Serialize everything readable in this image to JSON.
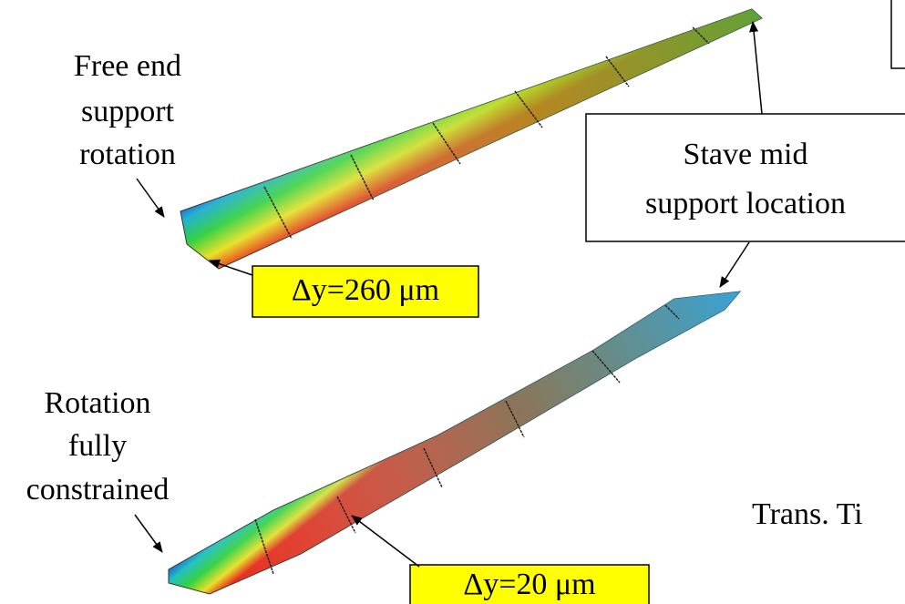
{
  "labels": {
    "free_end": [
      "Free end",
      "support",
      "rotation"
    ],
    "stave_mid": [
      "Stave mid",
      "support location"
    ],
    "dy_top": "Δy=260 μm",
    "rotation_constrained": [
      "Rotation",
      "fully",
      "constrained"
    ],
    "dy_bottom": "Δy=20 μm",
    "trans": "Trans. Ti"
  }
}
